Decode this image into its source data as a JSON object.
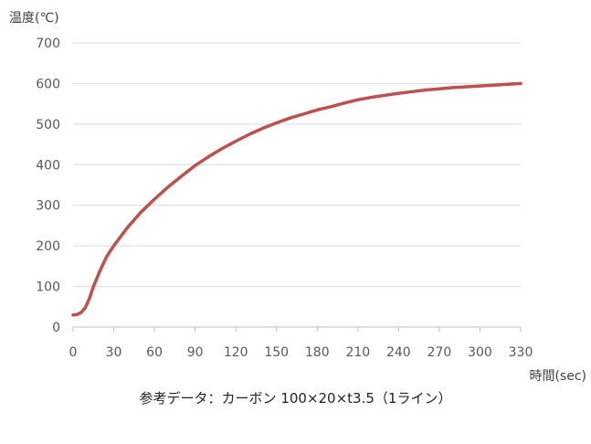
{
  "chart_data": {
    "type": "line",
    "ylabel": "温度(℃)",
    "xlabel": "時間(sec)",
    "caption": "参考データ：カーボン 100×20×t3.5（1ライン）",
    "xlim": [
      0,
      330
    ],
    "ylim": [
      0,
      700
    ],
    "x_ticks": [
      0,
      30,
      60,
      90,
      120,
      150,
      180,
      210,
      240,
      270,
      300,
      330
    ],
    "y_ticks": [
      0,
      100,
      200,
      300,
      400,
      500,
      600,
      700
    ],
    "grid": "horizontal",
    "line_color": "#c0504d",
    "grid_color": "#d9d9d9",
    "series": [
      {
        "x": [
          0,
          3,
          6,
          9,
          12,
          15,
          20,
          25,
          30,
          40,
          50,
          60,
          70,
          80,
          90,
          100,
          110,
          120,
          130,
          140,
          150,
          160,
          170,
          180,
          190,
          200,
          210,
          220,
          230,
          240,
          250,
          260,
          270,
          280,
          290,
          300,
          310,
          320,
          330
        ],
        "values": [
          30,
          31,
          36,
          48,
          70,
          100,
          140,
          175,
          200,
          245,
          283,
          315,
          345,
          372,
          398,
          420,
          440,
          458,
          475,
          490,
          503,
          515,
          525,
          535,
          543,
          552,
          560,
          566,
          571,
          576,
          580,
          584,
          587,
          590,
          592,
          594,
          596,
          598,
          600
        ]
      }
    ]
  }
}
